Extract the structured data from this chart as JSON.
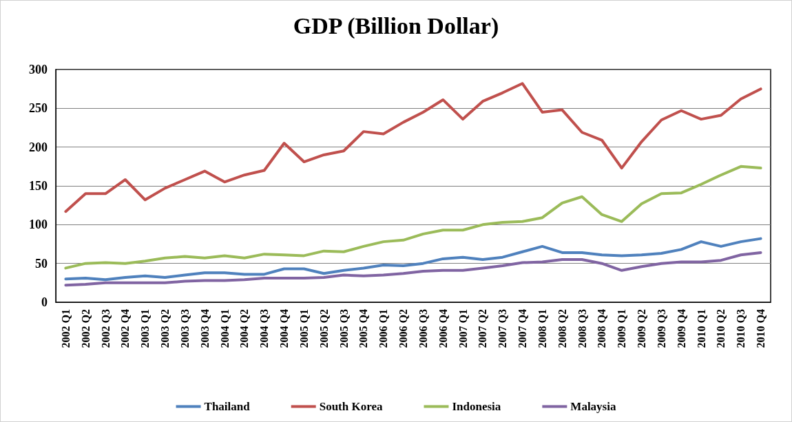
{
  "chart_data": {
    "type": "line",
    "title": "GDP (Billion Dollar)",
    "categories": [
      "2002 Q1",
      "2002 Q2",
      "2002 Q3",
      "2002 Q4",
      "2003 Q1",
      "2003 Q2",
      "2003 Q3",
      "2003 Q4",
      "2004 Q1",
      "2004 Q2",
      "2004 Q3",
      "2004 Q4",
      "2005 Q1",
      "2005 Q2",
      "2005 Q3",
      "2005 Q4",
      "2006 Q1",
      "2006 Q2",
      "2006 Q3",
      "2006 Q4",
      "2007 Q1",
      "2007 Q2",
      "2007 Q3",
      "2007 Q4",
      "2008 Q1",
      "2008 Q2",
      "2008 Q3",
      "2008 Q4",
      "2009 Q1",
      "2009 Q2",
      "2009 Q3",
      "2009 Q4",
      "2010 Q1",
      "2010 Q2",
      "2010 Q3",
      "2010 Q4"
    ],
    "series": [
      {
        "name": "Thailand",
        "color": "#4f81bd",
        "values": [
          30,
          31,
          29,
          32,
          34,
          32,
          35,
          38,
          38,
          36,
          36,
          43,
          43,
          37,
          41,
          44,
          48,
          47,
          50,
          56,
          58,
          55,
          58,
          65,
          72,
          64,
          64,
          61,
          60,
          61,
          63,
          68,
          78,
          72,
          78,
          82
        ]
      },
      {
        "name": "South Korea",
        "color": "#c0504d",
        "values": [
          117,
          140,
          140,
          158,
          132,
          147,
          158,
          169,
          155,
          164,
          170,
          205,
          181,
          190,
          195,
          220,
          217,
          232,
          245,
          261,
          236,
          259,
          270,
          282,
          245,
          248,
          219,
          209,
          173,
          207,
          235,
          247,
          236,
          241,
          262,
          275
        ]
      },
      {
        "name": "Indonesia",
        "color": "#9bbb59",
        "values": [
          44,
          50,
          51,
          50,
          53,
          57,
          59,
          57,
          60,
          57,
          62,
          61,
          60,
          66,
          65,
          72,
          78,
          80,
          88,
          93,
          93,
          100,
          103,
          104,
          109,
          128,
          136,
          113,
          104,
          127,
          140,
          141,
          152,
          164,
          175,
          173
        ]
      },
      {
        "name": "Malaysia",
        "color": "#8064a2",
        "values": [
          22,
          23,
          25,
          25,
          25,
          25,
          27,
          28,
          28,
          29,
          31,
          31,
          31,
          32,
          35,
          34,
          35,
          37,
          40,
          41,
          41,
          44,
          47,
          51,
          52,
          55,
          55,
          50,
          41,
          46,
          50,
          52,
          52,
          54,
          61,
          64
        ]
      }
    ],
    "ylim": [
      0,
      300
    ],
    "yticks": [
      0,
      50,
      100,
      150,
      200,
      250,
      300
    ],
    "grid": "y",
    "legend": "bottom",
    "marker": "none",
    "line_style": "solid"
  }
}
